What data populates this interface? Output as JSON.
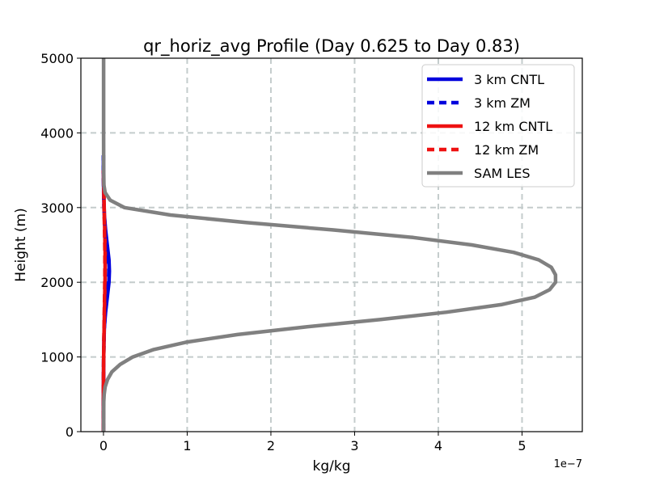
{
  "colors": {
    "cntl_3km": "#0000dd",
    "zm_3km": "#0000dd",
    "cntl_12km": "#ee1111",
    "zm_12km": "#ee1111",
    "sam_les": "#808080",
    "grid": "#c4cccc"
  },
  "chart_data": {
    "type": "line",
    "title": "qr_horiz_avg Profile (Day 0.625 to Day 0.83)",
    "xlabel": "kg/kg",
    "ylabel": "Height (m)",
    "x_scale_label": "1e−7",
    "xlim": [
      -2.7e-08,
      5.72e-07
    ],
    "ylim": [
      0,
      5000
    ],
    "xticks": [
      0,
      1e-07,
      2e-07,
      3e-07,
      4e-07,
      5e-07
    ],
    "xtick_labels": [
      "0",
      "1",
      "2",
      "3",
      "4",
      "5"
    ],
    "yticks": [
      0,
      1000,
      2000,
      3000,
      4000,
      5000
    ],
    "ytick_labels": [
      "0",
      "1000",
      "2000",
      "3000",
      "4000",
      "5000"
    ],
    "grid": true,
    "legend_position": "top-right",
    "series": [
      {
        "name": "3 km CNTL",
        "style": "solid",
        "points": [
          [
            0,
            0
          ],
          [
            0,
            500
          ],
          [
            1e-10,
            800
          ],
          [
            2e-10,
            1000
          ],
          [
            5e-10,
            1200
          ],
          [
            1e-09,
            1400
          ],
          [
            2.5e-09,
            1600
          ],
          [
            4.5e-09,
            1800
          ],
          [
            6.5e-09,
            2000
          ],
          [
            7e-09,
            2150
          ],
          [
            6.5e-09,
            2300
          ],
          [
            4.5e-09,
            2500
          ],
          [
            2.5e-09,
            2700
          ],
          [
            1e-09,
            2900
          ],
          [
            4e-10,
            3100
          ],
          [
            1e-10,
            3300
          ],
          [
            0,
            3500
          ],
          [
            0,
            3700
          ]
        ]
      },
      {
        "name": "3 km ZM",
        "style": "dashed",
        "points": [
          [
            0,
            0
          ],
          [
            0,
            500
          ],
          [
            1e-10,
            800
          ],
          [
            2e-10,
            1000
          ],
          [
            5e-10,
            1200
          ],
          [
            1e-09,
            1400
          ],
          [
            2.2e-09,
            1600
          ],
          [
            4e-09,
            1800
          ],
          [
            6e-09,
            2000
          ],
          [
            6.5e-09,
            2150
          ],
          [
            6e-09,
            2300
          ],
          [
            4e-09,
            2500
          ],
          [
            2.2e-09,
            2700
          ],
          [
            9e-10,
            2900
          ],
          [
            3e-10,
            3100
          ],
          [
            1e-10,
            3300
          ],
          [
            0,
            3500
          ],
          [
            0,
            3700
          ]
        ]
      },
      {
        "name": "12 km CNTL",
        "style": "solid",
        "points": [
          [
            0,
            0
          ],
          [
            0,
            600
          ],
          [
            2e-10,
            1000
          ],
          [
            8e-10,
            1400
          ],
          [
            1.5e-09,
            1800
          ],
          [
            2e-09,
            2100
          ],
          [
            2e-09,
            2400
          ],
          [
            1.5e-09,
            2700
          ],
          [
            8e-10,
            3000
          ],
          [
            3e-10,
            3300
          ],
          [
            0,
            3500
          ]
        ]
      },
      {
        "name": "12 km ZM",
        "style": "dashed",
        "points": [
          [
            0,
            0
          ],
          [
            0,
            600
          ],
          [
            2e-10,
            1000
          ],
          [
            7e-10,
            1400
          ],
          [
            1.3e-09,
            1800
          ],
          [
            1.7e-09,
            2100
          ],
          [
            1.7e-09,
            2400
          ],
          [
            1.3e-09,
            2700
          ],
          [
            7e-10,
            3000
          ],
          [
            2e-10,
            3300
          ],
          [
            0,
            3500
          ]
        ]
      },
      {
        "name": "SAM LES",
        "style": "solid",
        "points": [
          [
            1e-10,
            0
          ],
          [
            2e-10,
            200
          ],
          [
            3e-10,
            400
          ],
          [
            8e-10,
            500
          ],
          [
            2e-09,
            600
          ],
          [
            5e-09,
            700
          ],
          [
            1e-08,
            800
          ],
          [
            2e-08,
            900
          ],
          [
            3.5e-08,
            1000
          ],
          [
            6e-08,
            1100
          ],
          [
            1e-07,
            1200
          ],
          [
            1.6e-07,
            1300
          ],
          [
            2.4e-07,
            1400
          ],
          [
            3.3e-07,
            1500
          ],
          [
            4.1e-07,
            1600
          ],
          [
            4.75e-07,
            1700
          ],
          [
            5.15e-07,
            1800
          ],
          [
            5.33e-07,
            1900
          ],
          [
            5.4e-07,
            2000
          ],
          [
            5.4e-07,
            2100
          ],
          [
            5.35e-07,
            2200
          ],
          [
            5.2e-07,
            2300
          ],
          [
            4.9e-07,
            2400
          ],
          [
            4.4e-07,
            2500
          ],
          [
            3.7e-07,
            2600
          ],
          [
            2.75e-07,
            2700
          ],
          [
            1.7e-07,
            2800
          ],
          [
            8e-08,
            2900
          ],
          [
            2.5e-08,
            3000
          ],
          [
            8e-09,
            3100
          ],
          [
            2e-09,
            3200
          ],
          [
            5e-10,
            3300
          ],
          [
            2e-10,
            3500
          ],
          [
            1e-10,
            4000
          ],
          [
            1e-10,
            5000
          ]
        ]
      }
    ]
  }
}
